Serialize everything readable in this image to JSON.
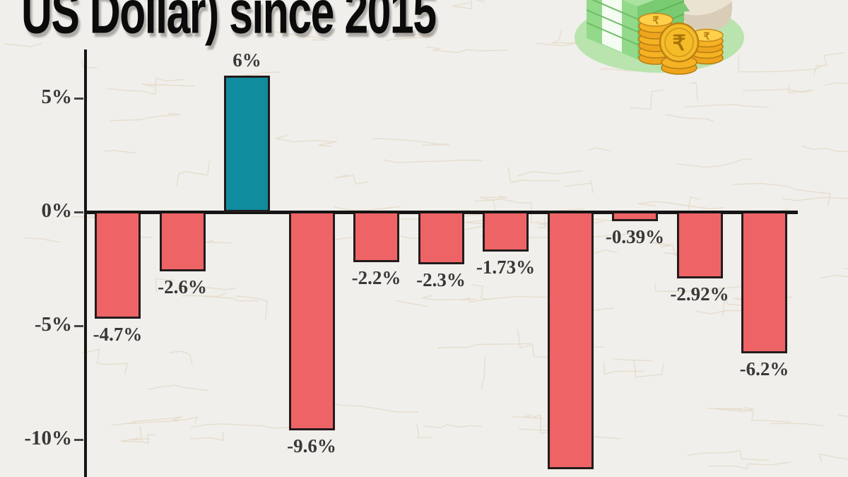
{
  "page": {
    "title_visible": "US Dollar) since 2015"
  },
  "colors": {
    "background": "#f0efeb",
    "bar_negative": "#ee6466",
    "bar_positive": "#0f8c9d",
    "bar_border": "#241c1c",
    "axis": "#161414",
    "label_text": "#3c3737",
    "title_text": "#0b0b0b",
    "texture_line": "#e4d7c4"
  },
  "chart_data": {
    "type": "bar",
    "title": "US Dollar) since 2015",
    "xlabel": "",
    "ylabel": "",
    "ylim": [
      -11.6,
      7.2
    ],
    "grid": false,
    "legend": "none",
    "yticks": [
      {
        "label": "5%",
        "value": 5
      },
      {
        "label": "0%",
        "value": 0
      },
      {
        "label": "-5%",
        "value": -5
      },
      {
        "label": "-10%",
        "value": -10
      }
    ],
    "bars": [
      {
        "label": "-4.7%",
        "value": -4.7
      },
      {
        "label": "-2.6%",
        "value": -2.6
      },
      {
        "label": "6%",
        "value": 6
      },
      {
        "label": "-9.6%",
        "value": -9.6
      },
      {
        "label": "-2.2%",
        "value": -2.2
      },
      {
        "label": "-2.3%",
        "value": -2.3
      },
      {
        "label": "-1.73%",
        "value": -1.73
      },
      {
        "label": "",
        "value": -11.3
      },
      {
        "label": "-0.39%",
        "value": -0.39
      },
      {
        "label": "-2.92%",
        "value": -2.92
      },
      {
        "label": "-6.2%",
        "value": -6.2
      }
    ]
  },
  "illustration": {
    "name": "cash-stack-coins-and-money-bag",
    "currency_symbol": "₹"
  }
}
